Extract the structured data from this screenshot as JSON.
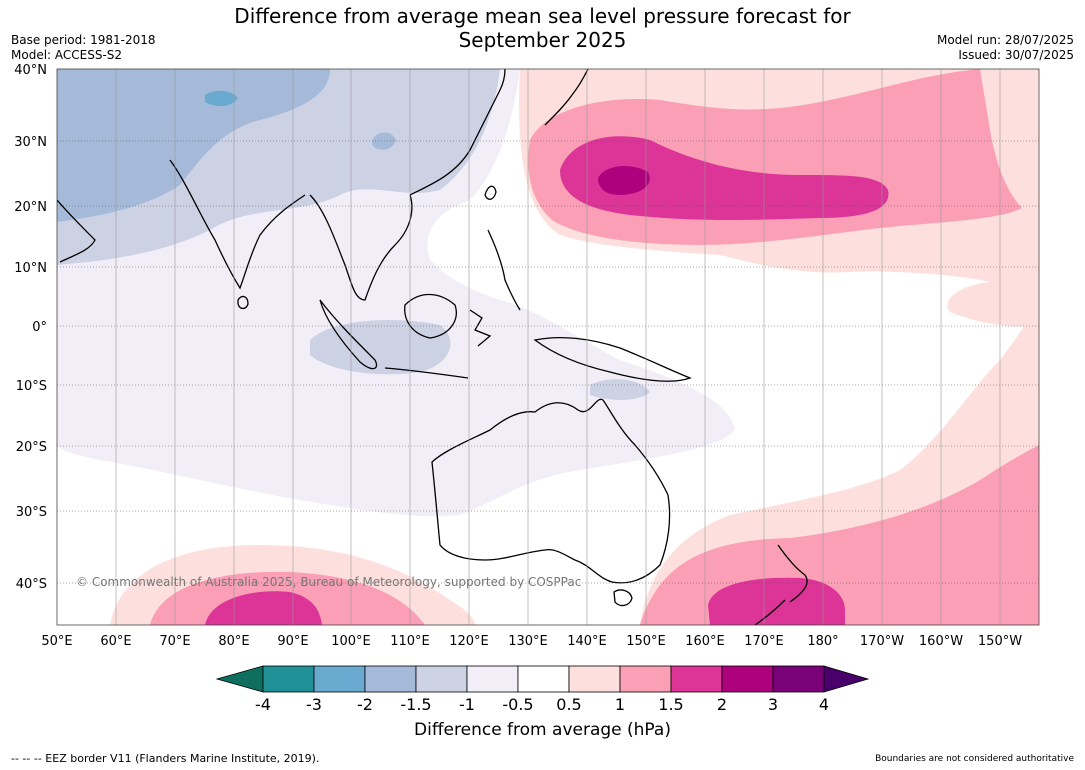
{
  "title_line1": "Difference from average mean sea level pressure forecast for",
  "title_line2": "September 2025",
  "base_period": "Base period: 1981-2018",
  "model": "Model: ACCESS-S2",
  "model_run": "Model run: 28/07/2025",
  "issued": "Issued: 30/07/2025",
  "copyright": "© Commonwealth of Australia 2025, Bureau of Meteorology, supported by COSPPac",
  "lat_labels": [
    "40°N",
    "30°N",
    "20°N",
    "10°N",
    "0°",
    "10°S",
    "20°S",
    "30°S",
    "40°S"
  ],
  "lon_labels": [
    "50°E",
    "60°E",
    "70°E",
    "80°E",
    "90°E",
    "100°E",
    "110°E",
    "120°E",
    "130°E",
    "140°E",
    "150°E",
    "160°E",
    "170°E",
    "180°",
    "170°W",
    "160°W",
    "150°W"
  ],
  "colorbar": {
    "ticks": [
      "-4",
      "-3",
      "-2",
      "-1.5",
      "-1",
      "-0.5",
      "0.5",
      "1",
      "1.5",
      "2",
      "3",
      "4"
    ],
    "colors": [
      "#0f6f5f",
      "#1f9197",
      "#6aa9d0",
      "#a5bad8",
      "#cdd1e4",
      "#f2eef7",
      "#ffffff",
      "#fde0dd",
      "#fa9fb5",
      "#dd3497",
      "#ae017e",
      "#7a0177",
      "#49006a"
    ],
    "label": "Difference from average (hPa)"
  },
  "footer_left": "--  --  -- EEZ border V11 (Flanders Marine Institute, 2019).",
  "footer_right": "Boundaries are not considered authoritative"
}
